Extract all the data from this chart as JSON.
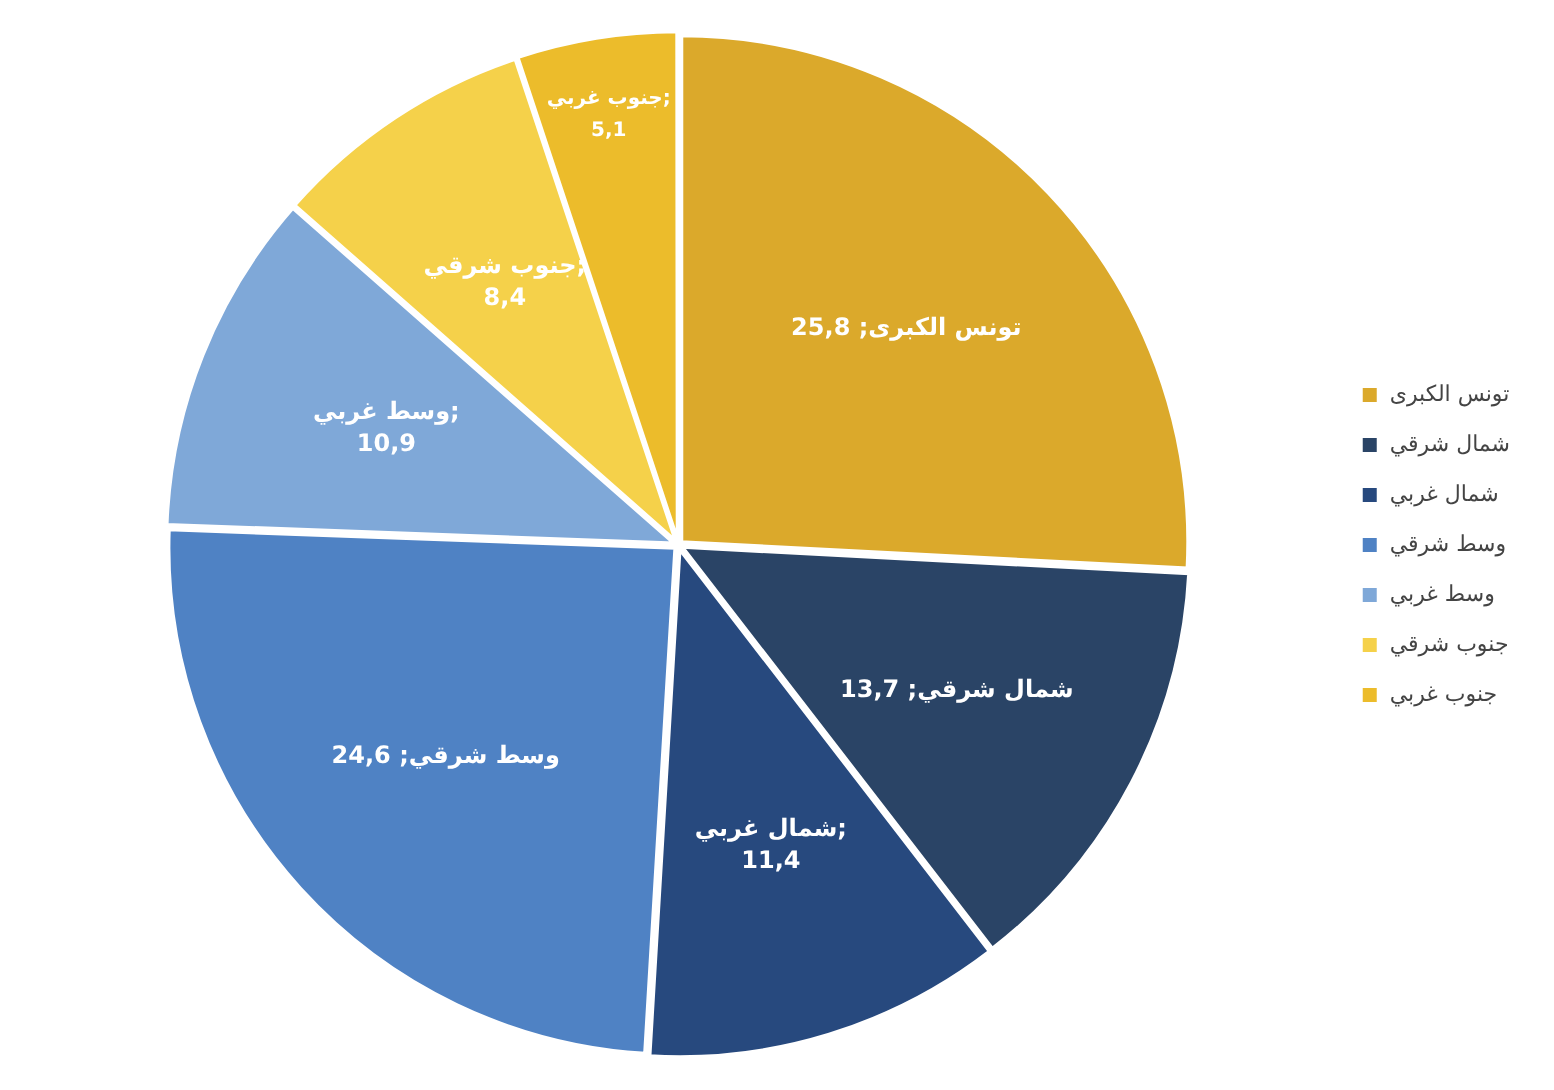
{
  "chart_data": {
    "type": "pie",
    "categories": [
      "تونس الكبرى",
      "شمال شرقي",
      "شمال غربي",
      "وسط شرقي",
      "وسط غربي",
      "جنوب شرقي",
      "جنوب غربي"
    ],
    "values": [
      25.8,
      13.7,
      11.4,
      24.6,
      10.9,
      8.4,
      5.1
    ],
    "value_labels": [
      "تونس الكبرى; 25,8",
      "شمال شرقي; 13,7",
      "شمال غربي; 11,4",
      "وسط شرقي; 24,6",
      "وسط غربي; 10,9",
      "جنوب شرقي; 8,4",
      "جنوب غربي; 5,1"
    ],
    "colors": [
      "#dba92b",
      "#2a4466",
      "#27497e",
      "#4f82c4",
      "#7fa8d8",
      "#f5d14a",
      "#ecbc2b"
    ],
    "legend": "right"
  }
}
